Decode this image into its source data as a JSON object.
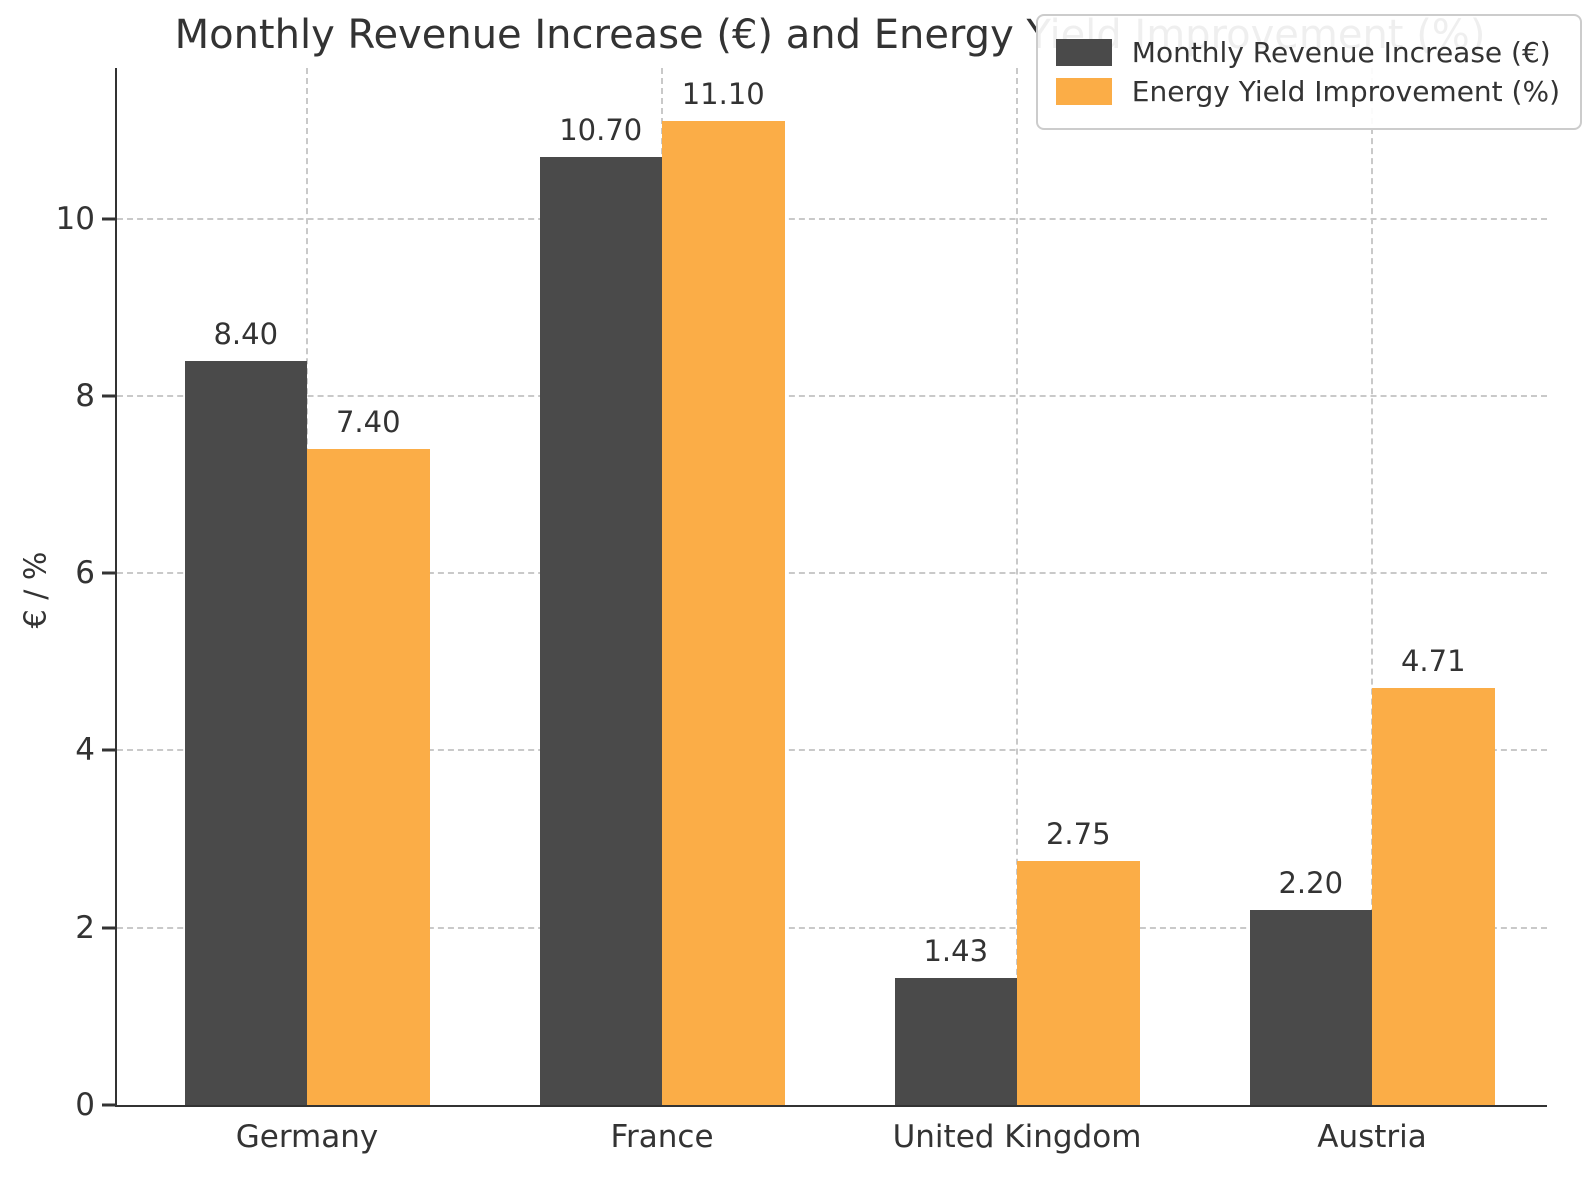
{
  "chart_data": {
    "type": "bar",
    "title": "Monthly Revenue Increase (€) and Energy Yield Improvement (%)",
    "xlabel": "",
    "ylabel": "€ / %",
    "categories": [
      "Germany",
      "France",
      "United Kingdom",
      "Austria"
    ],
    "series": [
      {
        "name": "Monthly Revenue Increase (€)",
        "color": "#4a4a4a",
        "values": [
          8.4,
          10.7,
          1.43,
          2.2
        ],
        "value_labels": [
          "8.40",
          "10.70",
          "1.43",
          "2.20"
        ]
      },
      {
        "name": "Energy Yield Improvement (%)",
        "color": "#fbad47",
        "values": [
          7.4,
          11.1,
          2.75,
          4.71
        ],
        "value_labels": [
          "7.40",
          "11.10",
          "2.75",
          "4.71"
        ]
      }
    ],
    "ylim": [
      0,
      11.7
    ],
    "yticks": [
      0,
      2,
      4,
      6,
      8,
      10
    ],
    "grid": true,
    "grid_style": "dashed",
    "grid_color": "#c9c9c9",
    "legend_position": "upper right",
    "background_color": "#ffffff",
    "text_color": "#333333"
  }
}
